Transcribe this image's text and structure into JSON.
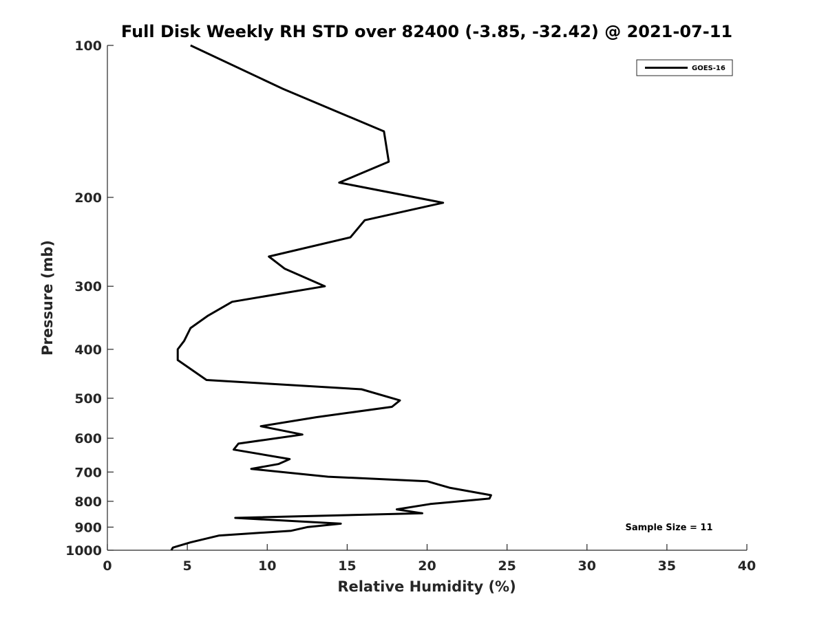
{
  "chart_data": {
    "type": "line",
    "title": "Full Disk Weekly RH STD over 82400 (-3.85, -32.42) @ 2021-07-11",
    "xlabel": "Relative Humidity (%)",
    "ylabel": "Pressure (mb)",
    "xlim": [
      0,
      40
    ],
    "ylim": [
      1000,
      100
    ],
    "yscale": "log",
    "xticks": [
      0,
      5,
      10,
      15,
      20,
      25,
      30,
      35,
      40
    ],
    "yticks": [
      100,
      200,
      300,
      400,
      500,
      600,
      700,
      800,
      900,
      1000
    ],
    "grid": false,
    "legend_position": "top-right",
    "series": [
      {
        "name": "GOES-16",
        "color": "#000000",
        "points": [
          [
            5.2,
            100
          ],
          [
            11.0,
            122
          ],
          [
            17.3,
            148
          ],
          [
            17.6,
            170
          ],
          [
            14.5,
            187
          ],
          [
            21.0,
            205
          ],
          [
            16.1,
            222
          ],
          [
            15.2,
            240
          ],
          [
            10.1,
            262
          ],
          [
            11.1,
            277
          ],
          [
            13.6,
            300
          ],
          [
            7.8,
            322
          ],
          [
            6.3,
            343
          ],
          [
            5.2,
            363
          ],
          [
            4.8,
            385
          ],
          [
            4.4,
            400
          ],
          [
            4.4,
            420
          ],
          [
            6.2,
            460
          ],
          [
            15.9,
            480
          ],
          [
            18.3,
            505
          ],
          [
            17.8,
            520
          ],
          [
            13.1,
            545
          ],
          [
            9.6,
            568
          ],
          [
            12.2,
            590
          ],
          [
            8.2,
            615
          ],
          [
            7.9,
            632
          ],
          [
            11.4,
            660
          ],
          [
            10.7,
            675
          ],
          [
            9.0,
            690
          ],
          [
            13.8,
            715
          ],
          [
            20.0,
            730
          ],
          [
            21.4,
            752
          ],
          [
            24.0,
            778
          ],
          [
            23.9,
            790
          ],
          [
            20.2,
            810
          ],
          [
            18.1,
            830
          ],
          [
            19.7,
            845
          ],
          [
            8.0,
            863
          ],
          [
            14.6,
            886
          ],
          [
            12.5,
            900
          ],
          [
            11.5,
            915
          ],
          [
            7.0,
            935
          ],
          [
            5.2,
            965
          ],
          [
            4.1,
            988
          ],
          [
            4.0,
            1000
          ]
        ]
      }
    ],
    "annotations": [
      "Sample Size = 11"
    ]
  }
}
